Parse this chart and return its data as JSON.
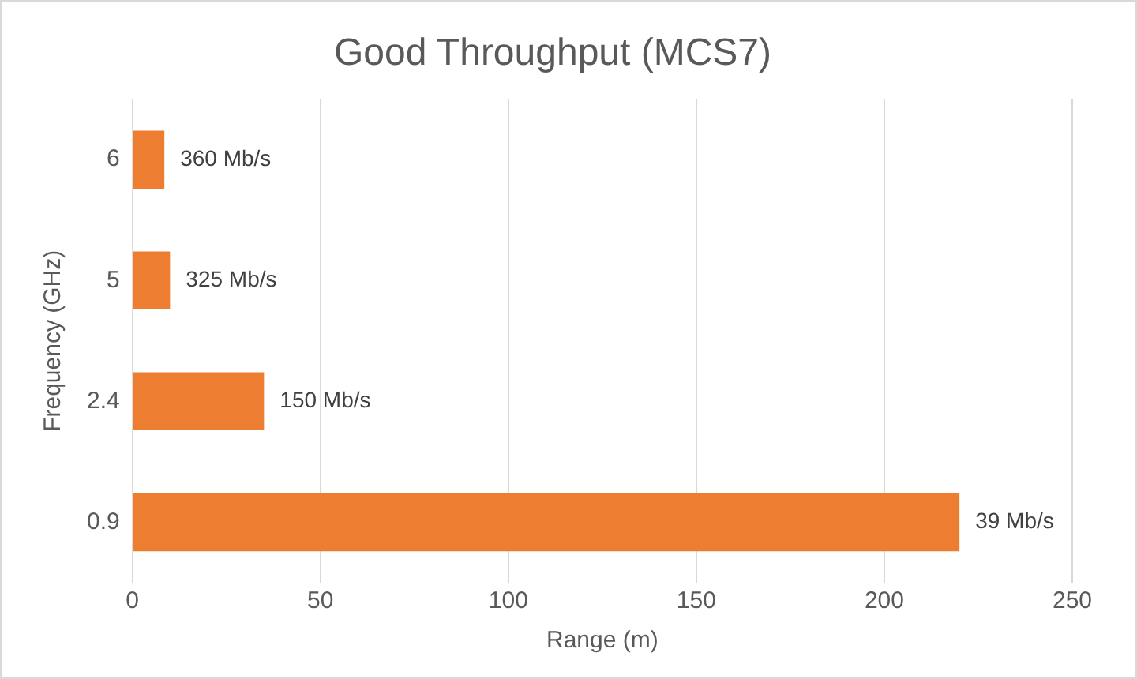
{
  "chart_data": {
    "type": "bar",
    "orientation": "horizontal",
    "title": "Good Throughput (MCS7)",
    "xlabel": "Range (m)",
    "ylabel": "Frequency (GHz)",
    "categories": [
      "6",
      "5",
      "2.4",
      "0.9"
    ],
    "values": [
      8.5,
      10,
      35,
      220
    ],
    "annotations": [
      {
        "text": "360 Mb/s",
        "x": 8.5,
        "y": "6"
      },
      {
        "text": "325 Mb/s",
        "x": 10,
        "y": "5"
      },
      {
        "text": "150 Mb/s",
        "x": 35,
        "y": "2.4"
      },
      {
        "text": "39 Mb/s",
        "x": 220,
        "y": "0.9"
      }
    ],
    "color": "#ed7d31",
    "xlim": [
      0,
      250
    ],
    "xticks": [
      0,
      50,
      100,
      150,
      200,
      250
    ],
    "grid": "x",
    "legend": false
  }
}
